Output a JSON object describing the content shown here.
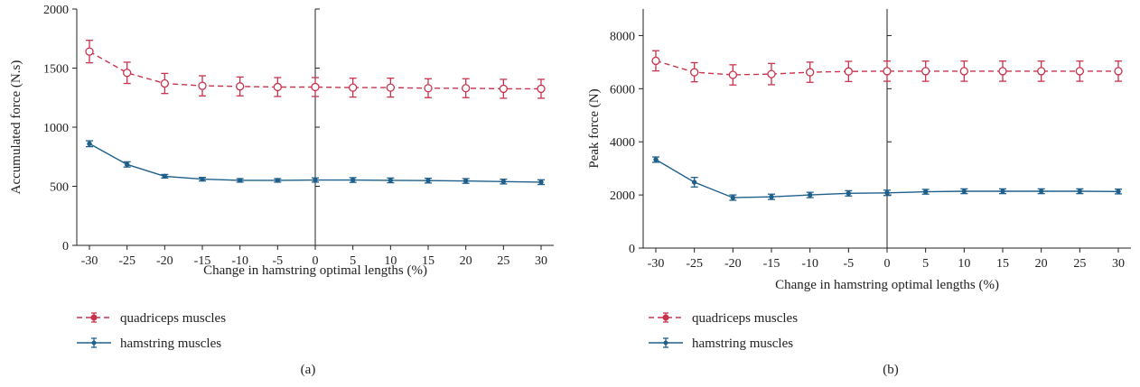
{
  "chart_data": [
    {
      "type": "line",
      "panel_label": "(a)",
      "xlabel": "Change in hamstring optimal lengths (%)",
      "ylabel": "Accumulated force (N.s)",
      "xlim": [
        -30,
        30
      ],
      "ylim": [
        0,
        2000
      ],
      "x": [
        -30,
        -25,
        -20,
        -15,
        -10,
        -5,
        0,
        5,
        10,
        15,
        20,
        25,
        30
      ],
      "x_ticks": [
        "-30",
        "-25",
        "-20",
        "-15",
        "-10",
        "-5",
        "0",
        "5",
        "10",
        "15",
        "20",
        "25",
        "30"
      ],
      "y_ticks": [
        "0",
        "500",
        "1000",
        "1500",
        "2000"
      ],
      "y_tick_values": [
        0,
        500,
        1000,
        1500,
        2000
      ],
      "grid": false,
      "legend_position": "bottom-left",
      "series": [
        {
          "name": "quadriceps muscles",
          "color": "#c8334d",
          "line_style": "dashed",
          "marker": "open-circle",
          "values": [
            1640,
            1460,
            1370,
            1350,
            1345,
            1340,
            1340,
            1335,
            1335,
            1330,
            1330,
            1325,
            1325
          ],
          "errors": [
            95,
            90,
            85,
            85,
            80,
            80,
            80,
            80,
            80,
            80,
            80,
            80,
            80
          ]
        },
        {
          "name": "hamstring muscles",
          "color": "#1f5f8b",
          "line_style": "solid",
          "marker": "dot",
          "values": [
            860,
            685,
            585,
            560,
            550,
            550,
            553,
            553,
            550,
            548,
            545,
            540,
            535
          ],
          "errors": [
            25,
            22,
            15,
            15,
            15,
            15,
            18,
            20,
            20,
            20,
            20,
            20,
            20
          ]
        }
      ]
    },
    {
      "type": "line",
      "panel_label": "(b)",
      "xlabel": "Change in hamstring optimal lengths (%)",
      "ylabel": "Peak force (N)",
      "xlim": [
        -30,
        30
      ],
      "ylim": [
        0,
        9000
      ],
      "x": [
        -30,
        -25,
        -20,
        -15,
        -10,
        -5,
        0,
        5,
        10,
        15,
        20,
        25,
        30
      ],
      "x_ticks": [
        "-30",
        "-25",
        "-20",
        "-15",
        "-10",
        "-5",
        "0",
        "5",
        "10",
        "15",
        "20",
        "25",
        "30"
      ],
      "y_ticks": [
        "0",
        "2000",
        "4000",
        "6000",
        "8000"
      ],
      "y_tick_values": [
        0,
        2000,
        4000,
        6000,
        8000
      ],
      "grid": false,
      "legend_position": "bottom-left",
      "series": [
        {
          "name": "quadriceps muscles",
          "color": "#c8334d",
          "line_style": "dashed",
          "marker": "open-circle",
          "values": [
            7050,
            6620,
            6520,
            6550,
            6620,
            6650,
            6660,
            6660,
            6660,
            6660,
            6660,
            6660,
            6660
          ],
          "errors": [
            380,
            360,
            380,
            400,
            380,
            380,
            380,
            380,
            380,
            380,
            380,
            380,
            380
          ]
        },
        {
          "name": "hamstring muscles",
          "color": "#1f5f8b",
          "line_style": "solid",
          "marker": "dot",
          "values": [
            3330,
            2480,
            1900,
            1930,
            2000,
            2060,
            2080,
            2120,
            2140,
            2140,
            2140,
            2140,
            2130
          ],
          "errors": [
            100,
            180,
            100,
            100,
            100,
            100,
            100,
            90,
            90,
            90,
            90,
            90,
            90
          ]
        }
      ]
    }
  ]
}
